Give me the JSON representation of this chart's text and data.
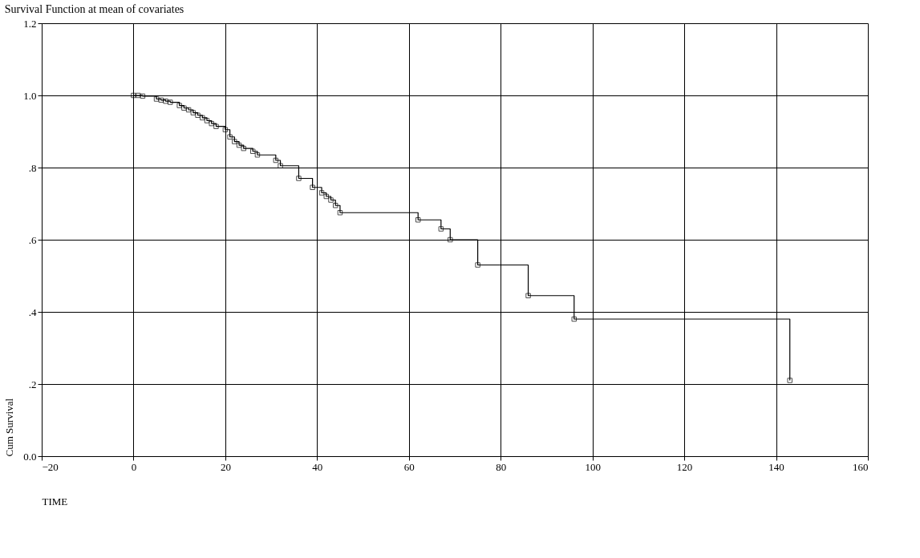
{
  "chart_data": {
    "type": "step",
    "title": "Survival Function at mean of covariates",
    "xlabel": "TIME",
    "ylabel": "Cum Survival",
    "x": [
      0,
      1,
      2,
      5,
      6,
      7,
      8,
      10,
      11,
      12,
      13,
      14,
      15,
      16,
      17,
      18,
      20,
      21,
      22,
      23,
      24,
      26,
      27,
      31,
      32,
      36,
      39,
      41,
      42,
      43,
      44,
      45,
      62,
      67,
      69,
      75,
      86,
      96,
      143
    ],
    "series": [
      {
        "color": "#000000",
        "values": [
          1.0,
          1.0,
          0.998,
          0.99,
          0.987,
          0.984,
          0.981,
          0.972,
          0.965,
          0.96,
          0.952,
          0.945,
          0.938,
          0.93,
          0.922,
          0.914,
          0.905,
          0.885,
          0.872,
          0.862,
          0.853,
          0.845,
          0.835,
          0.82,
          0.805,
          0.77,
          0.745,
          0.73,
          0.72,
          0.71,
          0.695,
          0.675,
          0.655,
          0.63,
          0.6,
          0.53,
          0.445,
          0.38,
          0.21
        ]
      }
    ],
    "xlim": [
      -20,
      160
    ],
    "xticks": [
      -20,
      0,
      20,
      40,
      60,
      80,
      100,
      120,
      140,
      160
    ],
    "ylim": [
      0,
      1.2
    ],
    "yticks": [
      {
        "value": 0,
        "label": "0.0"
      },
      {
        "value": 0.2,
        "label": ".2"
      },
      {
        "value": 0.4,
        "label": ".4"
      },
      {
        "value": 0.6,
        "label": ".6"
      },
      {
        "value": 0.8,
        "label": ".8"
      },
      {
        "value": 1.0,
        "label": "1.0"
      },
      {
        "value": 1.2,
        "label": "1.2"
      }
    ],
    "grid": true,
    "marker": "square",
    "line_style": "solid"
  }
}
